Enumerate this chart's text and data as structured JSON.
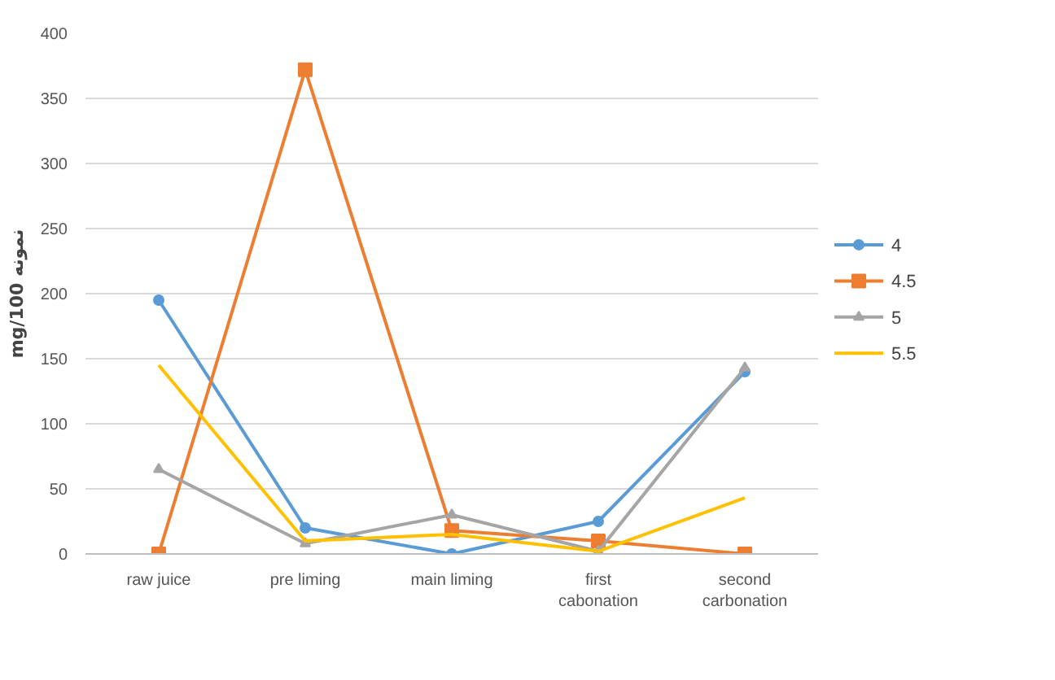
{
  "chart_data": {
    "type": "line",
    "ylabel": "mg/100 نمونه",
    "categories": [
      "raw juice",
      "pre liming",
      "main liming",
      "first cabonation",
      "second carbonation"
    ],
    "series": [
      {
        "name": "4",
        "color": "#5b9bd5",
        "marker": "circle",
        "values": [
          195,
          20,
          0,
          25,
          140
        ]
      },
      {
        "name": "4.5",
        "color": "#ed7d31",
        "marker": "square",
        "values": [
          0,
          372,
          18,
          10,
          0
        ]
      },
      {
        "name": "5",
        "color": "#a5a5a5",
        "marker": "triangle",
        "values": [
          65,
          8,
          30,
          2,
          143
        ]
      },
      {
        "name": "5.5",
        "color": "#ffc000",
        "marker": "none",
        "values": [
          145,
          10,
          15,
          2,
          43
        ]
      }
    ],
    "ylim": [
      0,
      400
    ],
    "yticks": [
      0,
      50,
      100,
      150,
      200,
      250,
      300,
      350,
      400
    ],
    "grid": "y",
    "legend": "right"
  }
}
